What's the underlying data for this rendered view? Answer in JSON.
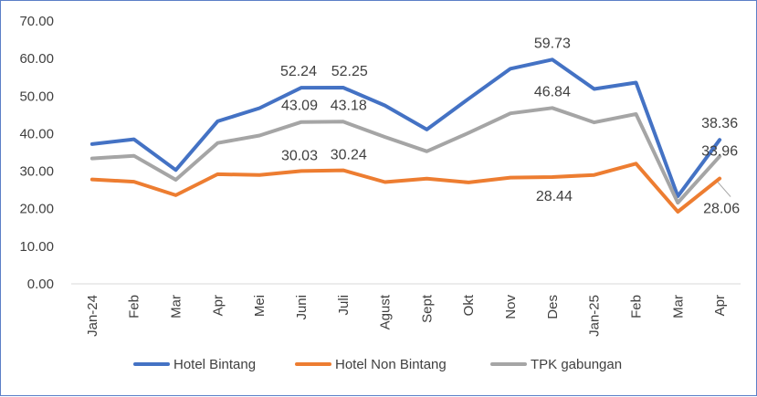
{
  "chart_data": {
    "type": "line",
    "title": "",
    "xlabel": "",
    "ylabel": "",
    "ylim": [
      0,
      70
    ],
    "y_ticks": [
      "0.00",
      "10.00",
      "20.00",
      "30.00",
      "40.00",
      "50.00",
      "60.00",
      "70.00"
    ],
    "categories": [
      "Jan-24",
      "Feb",
      "Mar",
      "Apr",
      "Mei",
      "Juni",
      "Juli",
      "Agust",
      "Sept",
      "Okt",
      "Nov",
      "Des",
      "Jan-25",
      "Feb",
      "Mar",
      "Apr"
    ],
    "grid": false,
    "legend_position": "bottom",
    "series": [
      {
        "name": "Hotel Bintang",
        "color": "#4472c4",
        "values": [
          37.2,
          38.5,
          30.3,
          43.3,
          46.8,
          52.24,
          52.25,
          47.5,
          41.1,
          49.3,
          57.3,
          59.73,
          51.9,
          53.6,
          23.3,
          38.36
        ],
        "labels": [
          null,
          null,
          null,
          null,
          null,
          "52.24",
          "52.25",
          null,
          null,
          null,
          null,
          "59.73",
          null,
          null,
          null,
          "38.36"
        ]
      },
      {
        "name": "Hotel Non Bintang",
        "color": "#ed7d31",
        "values": [
          27.8,
          27.2,
          23.6,
          29.2,
          29.0,
          30.03,
          30.24,
          27.1,
          28.0,
          27.0,
          28.3,
          28.44,
          29.0,
          32.0,
          19.2,
          28.06
        ],
        "labels": [
          null,
          null,
          null,
          null,
          null,
          "30.03",
          "30.24",
          null,
          null,
          null,
          null,
          "28.44",
          null,
          null,
          null,
          "28.06"
        ]
      },
      {
        "name": "TPK gabungan",
        "color": "#a5a5a5",
        "values": [
          33.4,
          34.1,
          27.7,
          37.5,
          39.5,
          43.09,
          43.18,
          39.1,
          35.3,
          40.2,
          45.4,
          46.84,
          43.0,
          45.2,
          21.6,
          33.96
        ],
        "labels": [
          null,
          null,
          null,
          null,
          null,
          "43.09",
          "43.18",
          null,
          null,
          null,
          null,
          "46.84",
          null,
          null,
          null,
          "33.96"
        ]
      }
    ]
  }
}
